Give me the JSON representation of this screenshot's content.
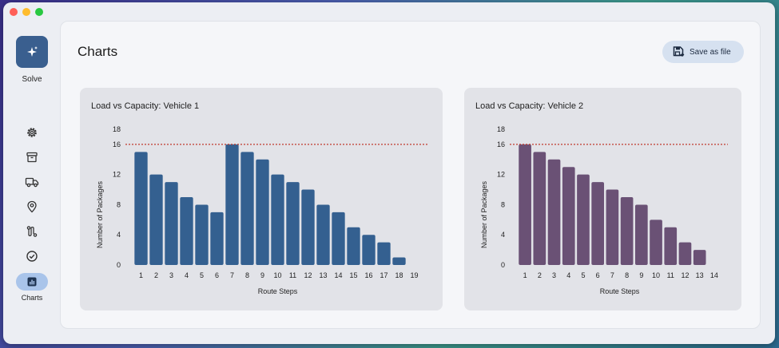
{
  "sidebar": {
    "solve_label": "Solve",
    "charts_label": "Charts",
    "nav_icons": [
      "gear-icon",
      "archive-icon",
      "truck-icon",
      "map-pin-icon",
      "route-icon",
      "check-circle-icon"
    ]
  },
  "main": {
    "title": "Charts",
    "save_label": "Save as file"
  },
  "colors": {
    "accent": "#3a5f8f",
    "vehicle1_bar": "#346090",
    "vehicle2_bar": "#6a5175",
    "capacity_line": "#c0392b",
    "active_nav": "#a9c4ea"
  },
  "chart_data": [
    {
      "type": "bar",
      "title": "Load vs Capacity: Vehicle 1",
      "xlabel": "Route Steps",
      "ylabel": "Number of Packages",
      "categories": [
        "1",
        "2",
        "3",
        "4",
        "5",
        "6",
        "7",
        "8",
        "9",
        "10",
        "11",
        "12",
        "13",
        "14",
        "15",
        "16",
        "17",
        "18",
        "19"
      ],
      "values": [
        15,
        12,
        11,
        9,
        8,
        7,
        16,
        15,
        14,
        12,
        11,
        10,
        8,
        7,
        5,
        4,
        3,
        1,
        0
      ],
      "capacity": 16,
      "yticks": [
        0,
        4,
        8,
        12,
        16,
        18
      ],
      "ylim": [
        0,
        18
      ],
      "grid": false
    },
    {
      "type": "bar",
      "title": "Load vs Capacity: Vehicle 2",
      "xlabel": "Route Steps",
      "ylabel": "Number of Packages",
      "categories": [
        "1",
        "2",
        "3",
        "4",
        "5",
        "6",
        "7",
        "8",
        "9",
        "10",
        "11",
        "12",
        "13",
        "14"
      ],
      "values": [
        16,
        15,
        14,
        13,
        12,
        11,
        10,
        9,
        8,
        6,
        5,
        3,
        2,
        0
      ],
      "capacity": 16,
      "yticks": [
        0,
        4,
        8,
        12,
        16,
        18
      ],
      "ylim": [
        0,
        18
      ],
      "grid": false
    }
  ]
}
